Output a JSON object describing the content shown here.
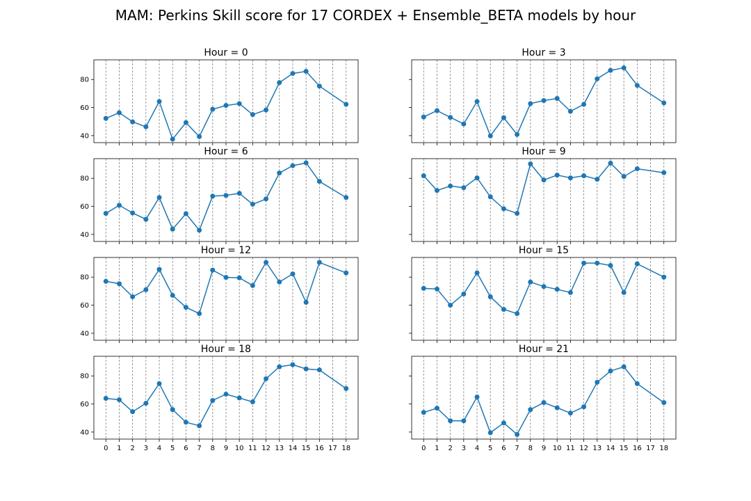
{
  "figure": {
    "title": "MAM: Perkins Skill score for 17 CORDEX + Ensemble_BETA models by hour"
  },
  "colors": {
    "series": "#1f77b4",
    "grid": "#808080",
    "axes": "#000000"
  },
  "chart_data": [
    {
      "type": "line",
      "title": "Hour = 0",
      "grid": "vertical dashed",
      "xlim": [
        -0.9,
        18.9
      ],
      "ylim": [
        35,
        94
      ],
      "x": [
        0,
        1,
        2,
        3,
        4,
        5,
        6,
        7,
        8,
        9,
        10,
        11,
        12,
        13,
        14,
        15,
        16,
        18
      ],
      "values": [
        52.3,
        56.3,
        49.8,
        46.3,
        64.3,
        37.5,
        49.3,
        39.3,
        58.8,
        61.5,
        62.8,
        55.0,
        58.3,
        77.8,
        84.3,
        85.8,
        75.3,
        62.3
      ]
    },
    {
      "type": "line",
      "title": "Hour = 3",
      "grid": "vertical dashed",
      "xlim": [
        -0.9,
        18.9
      ],
      "ylim": [
        35,
        94
      ],
      "x": [
        0,
        1,
        2,
        3,
        4,
        5,
        6,
        7,
        8,
        9,
        10,
        11,
        12,
        13,
        14,
        15,
        16,
        18
      ],
      "values": [
        53.3,
        57.8,
        53.0,
        48.3,
        64.3,
        39.8,
        52.8,
        40.8,
        62.8,
        65.0,
        66.5,
        57.3,
        62.3,
        80.5,
        86.5,
        88.3,
        75.8,
        63.3
      ]
    },
    {
      "type": "line",
      "title": "Hour = 6",
      "grid": "vertical dashed",
      "xlim": [
        -0.9,
        18.9
      ],
      "ylim": [
        35,
        94
      ],
      "x": [
        0,
        1,
        2,
        3,
        4,
        5,
        6,
        7,
        8,
        9,
        10,
        11,
        12,
        13,
        14,
        15,
        16,
        18
      ],
      "values": [
        55.0,
        60.8,
        55.3,
        50.8,
        66.3,
        43.8,
        54.8,
        43.0,
        67.3,
        67.8,
        69.3,
        61.5,
        65.3,
        83.8,
        89.0,
        91.0,
        77.8,
        66.3
      ]
    },
    {
      "type": "line",
      "title": "Hour = 9",
      "grid": "vertical dashed",
      "xlim": [
        -0.9,
        18.9
      ],
      "ylim": [
        35,
        94
      ],
      "x": [
        0,
        1,
        2,
        3,
        4,
        5,
        6,
        7,
        8,
        9,
        10,
        11,
        12,
        13,
        14,
        15,
        16,
        18
      ],
      "values": [
        81.8,
        71.3,
        74.5,
        73.3,
        80.3,
        66.8,
        58.3,
        55.0,
        90.3,
        78.8,
        82.3,
        80.3,
        81.8,
        79.3,
        90.8,
        81.3,
        86.8,
        84.0
      ]
    },
    {
      "type": "line",
      "title": "Hour = 12",
      "grid": "vertical dashed",
      "xlim": [
        -0.9,
        18.9
      ],
      "ylim": [
        35,
        94
      ],
      "x": [
        0,
        1,
        2,
        3,
        4,
        5,
        6,
        7,
        8,
        9,
        10,
        11,
        12,
        13,
        14,
        15,
        16,
        18
      ],
      "values": [
        77.0,
        75.3,
        66.0,
        71.0,
        85.5,
        67.0,
        58.5,
        54.0,
        85.0,
        79.8,
        79.5,
        74.0,
        90.5,
        76.5,
        82.3,
        62.0,
        90.5,
        83.0
      ]
    },
    {
      "type": "line",
      "title": "Hour = 15",
      "grid": "vertical dashed",
      "xlim": [
        -0.9,
        18.9
      ],
      "ylim": [
        35,
        94
      ],
      "x": [
        0,
        1,
        2,
        3,
        4,
        5,
        6,
        7,
        8,
        9,
        10,
        11,
        12,
        13,
        14,
        15,
        16,
        18
      ],
      "values": [
        72.0,
        71.5,
        60.0,
        68.0,
        83.0,
        66.0,
        57.0,
        54.0,
        76.5,
        73.3,
        71.3,
        69.0,
        90.0,
        90.0,
        88.3,
        69.0,
        89.5,
        80.0
      ]
    },
    {
      "type": "line",
      "title": "Hour = 18",
      "grid": "vertical dashed",
      "xlim": [
        -0.9,
        18.9
      ],
      "ylim": [
        35,
        94
      ],
      "x": [
        0,
        1,
        2,
        3,
        4,
        5,
        6,
        7,
        8,
        9,
        10,
        11,
        12,
        13,
        14,
        15,
        16,
        18
      ],
      "values": [
        64.0,
        63.0,
        54.5,
        60.5,
        74.5,
        56.0,
        47.0,
        44.5,
        62.5,
        67.0,
        64.3,
        61.5,
        78.0,
        86.5,
        88.0,
        85.0,
        84.3,
        71.0
      ]
    },
    {
      "type": "line",
      "title": "Hour = 21",
      "grid": "vertical dashed",
      "xlim": [
        -0.9,
        18.9
      ],
      "ylim": [
        35,
        94
      ],
      "x": [
        0,
        1,
        2,
        3,
        4,
        5,
        6,
        7,
        8,
        9,
        10,
        11,
        12,
        13,
        14,
        15,
        16,
        18
      ],
      "values": [
        54.0,
        57.0,
        48.0,
        48.0,
        65.0,
        39.5,
        46.5,
        38.3,
        56.0,
        61.0,
        57.3,
        53.5,
        58.0,
        75.5,
        83.5,
        86.5,
        74.5,
        61.0
      ]
    }
  ],
  "x_ticks": [
    "0",
    "1",
    "2",
    "3",
    "4",
    "5",
    "6",
    "7",
    "8",
    "9",
    "10",
    "11",
    "12",
    "13",
    "14",
    "15",
    "16",
    "17",
    "18"
  ],
  "y_ticks": [
    "40",
    "60",
    "80"
  ]
}
